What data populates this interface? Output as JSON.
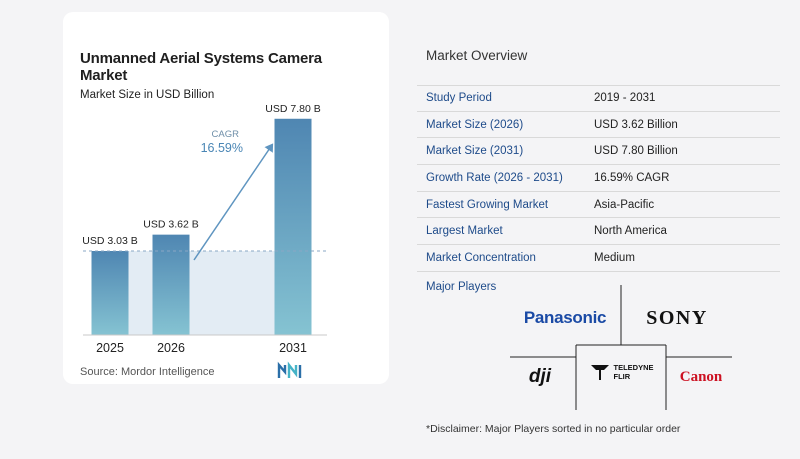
{
  "chart": {
    "title": "Unmanned Aerial Systems Camera Market",
    "subtitle": "Market Size in USD Billion",
    "source": "Source:  Mordor Intelligence"
  },
  "chart_data": {
    "type": "bar",
    "categories": [
      "2025",
      "2026",
      "2031"
    ],
    "values": [
      3.03,
      3.62,
      7.8
    ],
    "value_labels": [
      "USD 3.03 B",
      "USD 3.62 B",
      "USD 7.80 B"
    ],
    "cagr_label": "CAGR",
    "cagr_value": "16.59%",
    "title": "Unmanned Aerial Systems Camera Market",
    "subtitle": "Market Size in USD Billion",
    "grid": false,
    "colors": {
      "bar_top": "#4f86b2",
      "bar_bottom": "#85c3d2",
      "band": "#e3ecf4",
      "arrow": "#5f95c0",
      "dashed": "#8aa7c4"
    }
  },
  "overview": {
    "title": "Market Overview",
    "rows": [
      {
        "label": "Study Period",
        "value": "2019 - 2031"
      },
      {
        "label": "Market Size (2026)",
        "value": "USD 3.62 Billion"
      },
      {
        "label": "Market Size (2031)",
        "value": "USD 7.80 Billion"
      },
      {
        "label": "Growth Rate (2026 - 2031)",
        "value": "16.59% CAGR"
      },
      {
        "label": "Fastest Growing Market",
        "value": "Asia-Pacific"
      },
      {
        "label": "Largest Market",
        "value": "North America"
      },
      {
        "label": "Market Concentration",
        "value": "Medium"
      }
    ],
    "players_label": "Major Players"
  },
  "players": {
    "panasonic": "Panasonic",
    "sony": "SONY",
    "dji": "dji",
    "teledyne_line1": "TELEDYNE",
    "teledyne_line2": "FLIR",
    "canon": "Canon"
  },
  "disclaimer": "*Disclaimer: Major Players sorted in no particular order"
}
